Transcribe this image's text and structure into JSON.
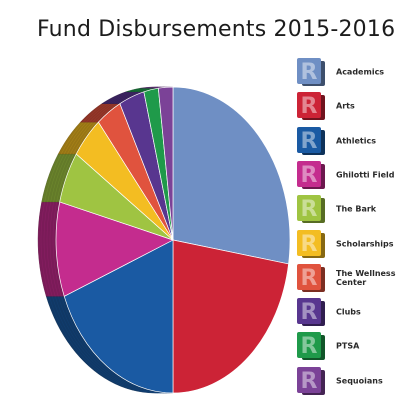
{
  "chart_data": {
    "type": "pie",
    "title": "Fund Disbursements 2015-2016",
    "legend_position": "right",
    "slices": [
      {
        "label": "Academics",
        "value": 27.5,
        "color": "#6f8fc4"
      },
      {
        "label": "Arts",
        "value": 22.5,
        "color": "#cc2336"
      },
      {
        "label": "Athletics",
        "value": 19,
        "color": "#1a5aa3"
      },
      {
        "label": "Ghilotti Field",
        "value": 10,
        "color": "#c42c8e"
      },
      {
        "label": "The Bark",
        "value": 5.5,
        "color": "#9fc442"
      },
      {
        "label": "Scholarships",
        "value": 4.5,
        "color": "#f3bd22"
      },
      {
        "label": "The Wellness\nCenter",
        "value": 3.5,
        "color": "#e0533e"
      },
      {
        "label": "Clubs",
        "value": 3.5,
        "color": "#58368f"
      },
      {
        "label": "PTSA",
        "value": 2,
        "color": "#1f9a4a"
      },
      {
        "label": "Sequoians",
        "value": 2,
        "color": "#7b4297"
      }
    ]
  }
}
